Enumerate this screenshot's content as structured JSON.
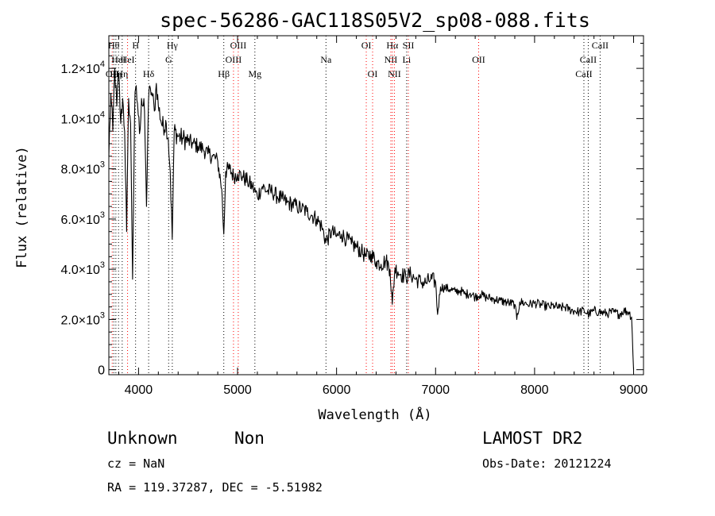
{
  "chart_data": {
    "type": "line",
    "title": "spec-56286-GAC118S05V2_sp08-088.fits",
    "xlabel": "Wavelength (Å)",
    "ylabel": "Flux (relative)",
    "xlim": [
      3700,
      9100
    ],
    "ylim": [
      -200,
      13300
    ],
    "x_ticks": [
      4000,
      5000,
      6000,
      7000,
      8000,
      9000
    ],
    "x_tick_labels": [
      "4000",
      "5000",
      "6000",
      "7000",
      "8000",
      "9000"
    ],
    "y_ticks": [
      0,
      2000,
      4000,
      6000,
      8000,
      10000,
      12000
    ],
    "y_tick_labels": [
      {
        "mant": "0",
        "exp": ""
      },
      {
        "mant": "2.0×10",
        "exp": "3"
      },
      {
        "mant": "4.0×10",
        "exp": "3"
      },
      {
        "mant": "6.0×10",
        "exp": "3"
      },
      {
        "mant": "8.0×10",
        "exp": "3"
      },
      {
        "mant": "1.0×10",
        "exp": "4"
      },
      {
        "mant": "1.2×10",
        "exp": "4"
      }
    ],
    "series": [
      {
        "x": [
          3700,
          3720,
          3740,
          3760,
          3780,
          3800,
          3820,
          3840,
          3860,
          3880,
          3900,
          3920,
          3940,
          3960,
          3970,
          3990,
          4010,
          4030,
          4060,
          4080,
          4100,
          4120,
          4140,
          4160,
          4180,
          4200,
          4240,
          4280,
          4300,
          4320,
          4340,
          4360,
          4400,
          4450,
          4500,
          4550,
          4600,
          4650,
          4700,
          4750,
          4800,
          4840,
          4861,
          4880,
          4920,
          4960,
          5000,
          5050,
          5100,
          5150,
          5200,
          5250,
          5300,
          5350,
          5400,
          5450,
          5500,
          5550,
          5600,
          5650,
          5700,
          5750,
          5800,
          5850,
          5893,
          5950,
          6000,
          6050,
          6100,
          6150,
          6200,
          6250,
          6300,
          6350,
          6400,
          6450,
          6500,
          6540,
          6563,
          6590,
          6620,
          6650,
          6700,
          6750,
          6800,
          6850,
          6900,
          6950,
          7000,
          7020,
          7050,
          7100,
          7150,
          7200,
          7250,
          7300,
          7350,
          7400,
          7450,
          7500,
          7550,
          7600,
          7650,
          7700,
          7750,
          7800,
          7820,
          7850,
          7900,
          7950,
          8000,
          8050,
          8100,
          8150,
          8200,
          8250,
          8300,
          8350,
          8400,
          8450,
          8500,
          8550,
          8600,
          8650,
          8700,
          8750,
          8800,
          8850,
          8900,
          8950,
          8980,
          9000
        ],
        "y": [
          8500,
          11000,
          9500,
          12000,
          10500,
          11800,
          9800,
          10800,
          9500,
          5500,
          10800,
          9800,
          3600,
          10200,
          11200,
          10600,
          9400,
          10800,
          10300,
          6500,
          10700,
          11200,
          10900,
          10300,
          11400,
          10500,
          9700,
          9800,
          9200,
          7900,
          5200,
          9500,
          9300,
          9200,
          9100,
          9000,
          8900,
          8800,
          8600,
          8500,
          8300,
          7200,
          5400,
          7900,
          8000,
          7700,
          7800,
          7700,
          7500,
          7300,
          6900,
          7300,
          7100,
          7100,
          6900,
          6800,
          6650,
          6600,
          6500,
          6400,
          6300,
          6150,
          6000,
          5700,
          5100,
          5500,
          5300,
          5400,
          5200,
          5000,
          4900,
          4700,
          4500,
          4600,
          4300,
          4200,
          4350,
          4000,
          2600,
          4050,
          3900,
          3800,
          3700,
          3800,
          3600,
          3500,
          3450,
          3600,
          3500,
          2200,
          3300,
          3250,
          3200,
          3100,
          3150,
          3000,
          3050,
          2900,
          3000,
          2900,
          2850,
          2800,
          2750,
          2700,
          2650,
          2600,
          2000,
          2700,
          2650,
          2600,
          2650,
          2600,
          2550,
          2500,
          2550,
          2450,
          2500,
          2400,
          2350,
          2300,
          2350,
          2200,
          2350,
          2300,
          2250,
          2250,
          2300,
          2200,
          2350,
          2300,
          2100,
          0
        ]
      }
    ],
    "lines": [
      {
        "x": 3734,
        "label": "OII",
        "row": 3,
        "color": "#ff0000"
      },
      {
        "x": 3750,
        "label": "Hθ",
        "row": 1,
        "color": "#000000"
      },
      {
        "x": 3771,
        "label": "Hη",
        "row": 3,
        "color": "#000000"
      },
      {
        "x": 3798,
        "label": "HeI",
        "row": 2,
        "color": "#000000"
      },
      {
        "x": 3835,
        "label": "Hη",
        "row": 3,
        "color": "#000000"
      },
      {
        "x": 3889,
        "label": "HeI",
        "row": 2,
        "color": "#ff0000"
      },
      {
        "x": 3970,
        "label": "H",
        "row": 1,
        "color": "#000000"
      },
      {
        "x": 4102,
        "label": "Hδ",
        "row": 3,
        "color": "#000000"
      },
      {
        "x": 4304,
        "label": "G",
        "row": 2,
        "color": "#000000"
      },
      {
        "x": 4341,
        "label": "Hγ",
        "row": 1,
        "color": "#000000"
      },
      {
        "x": 4861,
        "label": "Hβ",
        "row": 3,
        "color": "#000000"
      },
      {
        "x": 4959,
        "label": "OIII",
        "row": 2,
        "color": "#ff0000"
      },
      {
        "x": 5007,
        "label": "OIII",
        "row": 1,
        "color": "#ff0000"
      },
      {
        "x": 5175,
        "label": "Mg",
        "row": 3,
        "color": "#000000"
      },
      {
        "x": 5893,
        "label": "Na",
        "row": 2,
        "color": "#000000"
      },
      {
        "x": 6300,
        "label": "OI",
        "row": 1,
        "color": "#ff0000"
      },
      {
        "x": 6364,
        "label": "OI",
        "row": 3,
        "color": "#ff0000"
      },
      {
        "x": 6548,
        "label": "NII",
        "row": 2,
        "color": "#ff0000"
      },
      {
        "x": 6563,
        "label": "Hα",
        "row": 1,
        "color": "#ff0000"
      },
      {
        "x": 6584,
        "label": "NII",
        "row": 3,
        "color": "#ff0000"
      },
      {
        "x": 6708,
        "label": "Li",
        "row": 2,
        "color": "#000000"
      },
      {
        "x": 6725,
        "label": "SII",
        "row": 1,
        "color": "#ff0000"
      },
      {
        "x": 7435,
        "label": "OII",
        "row": 2,
        "color": "#ff0000"
      },
      {
        "x": 8498,
        "label": "CaII",
        "row": 3,
        "color": "#000000"
      },
      {
        "x": 8542,
        "label": "CaII",
        "row": 2,
        "color": "#000000"
      },
      {
        "x": 8662,
        "label": "CaII",
        "row": 1,
        "color": "#000000"
      }
    ]
  },
  "info": {
    "class": "Unknown",
    "subclass": "Non",
    "survey": "LAMOST DR2",
    "cz": "cz = NaN",
    "obs_date": "Obs-Date: 20121224",
    "coords": "RA = 119.37287, DEC =  -5.51982"
  }
}
